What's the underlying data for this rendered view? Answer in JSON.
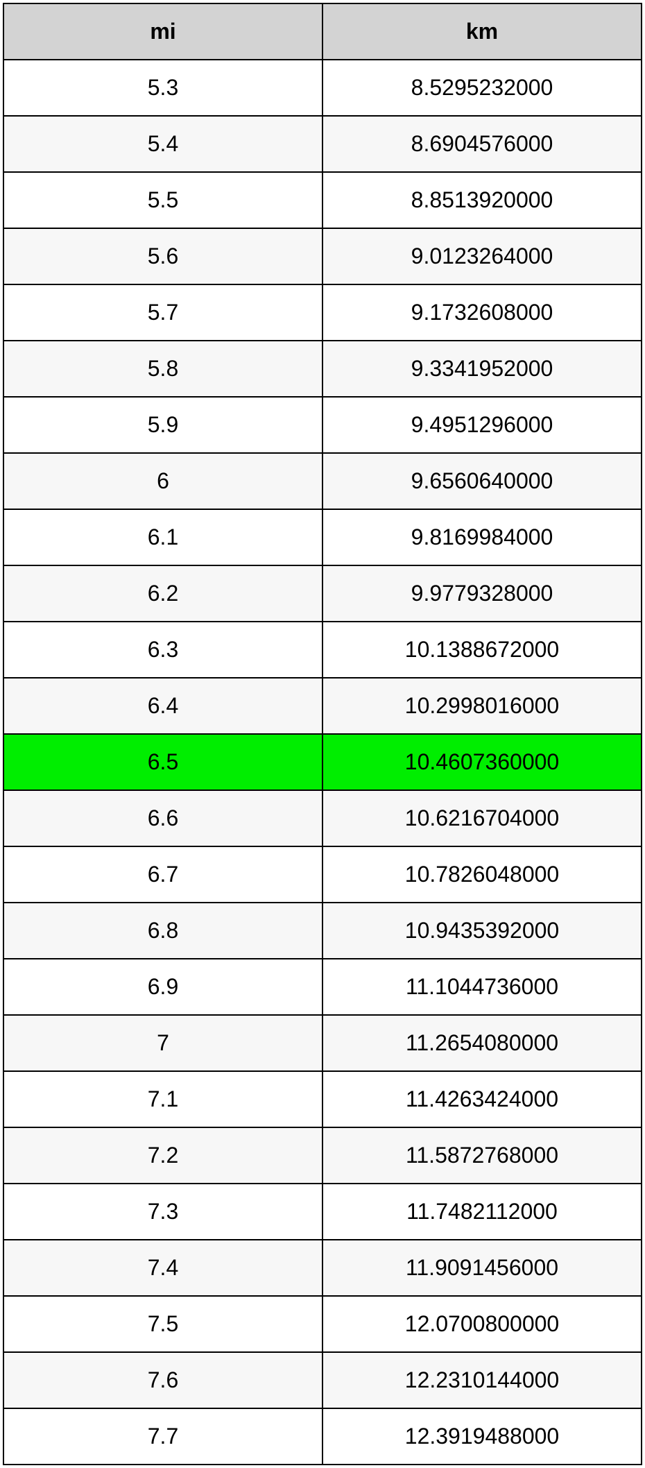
{
  "table": {
    "type": "table",
    "columns": [
      "mi",
      "km"
    ],
    "header_bg": "#d3d3d3",
    "row_bg_odd": "#ffffff",
    "row_bg_even": "#f7f7f7",
    "highlight_bg": "#00ee00",
    "border_color": "#000000",
    "font_size": 32,
    "highlight_index": 12,
    "rows": [
      {
        "mi": "5.3",
        "km": "8.5295232000"
      },
      {
        "mi": "5.4",
        "km": "8.6904576000"
      },
      {
        "mi": "5.5",
        "km": "8.8513920000"
      },
      {
        "mi": "5.6",
        "km": "9.0123264000"
      },
      {
        "mi": "5.7",
        "km": "9.1732608000"
      },
      {
        "mi": "5.8",
        "km": "9.3341952000"
      },
      {
        "mi": "5.9",
        "km": "9.4951296000"
      },
      {
        "mi": "6",
        "km": "9.6560640000"
      },
      {
        "mi": "6.1",
        "km": "9.8169984000"
      },
      {
        "mi": "6.2",
        "km": "9.9779328000"
      },
      {
        "mi": "6.3",
        "km": "10.1388672000"
      },
      {
        "mi": "6.4",
        "km": "10.2998016000"
      },
      {
        "mi": "6.5",
        "km": "10.4607360000"
      },
      {
        "mi": "6.6",
        "km": "10.6216704000"
      },
      {
        "mi": "6.7",
        "km": "10.7826048000"
      },
      {
        "mi": "6.8",
        "km": "10.9435392000"
      },
      {
        "mi": "6.9",
        "km": "11.1044736000"
      },
      {
        "mi": "7",
        "km": "11.2654080000"
      },
      {
        "mi": "7.1",
        "km": "11.4263424000"
      },
      {
        "mi": "7.2",
        "km": "11.5872768000"
      },
      {
        "mi": "7.3",
        "km": "11.7482112000"
      },
      {
        "mi": "7.4",
        "km": "11.9091456000"
      },
      {
        "mi": "7.5",
        "km": "12.0700800000"
      },
      {
        "mi": "7.6",
        "km": "12.2310144000"
      },
      {
        "mi": "7.7",
        "km": "12.3919488000"
      }
    ]
  }
}
